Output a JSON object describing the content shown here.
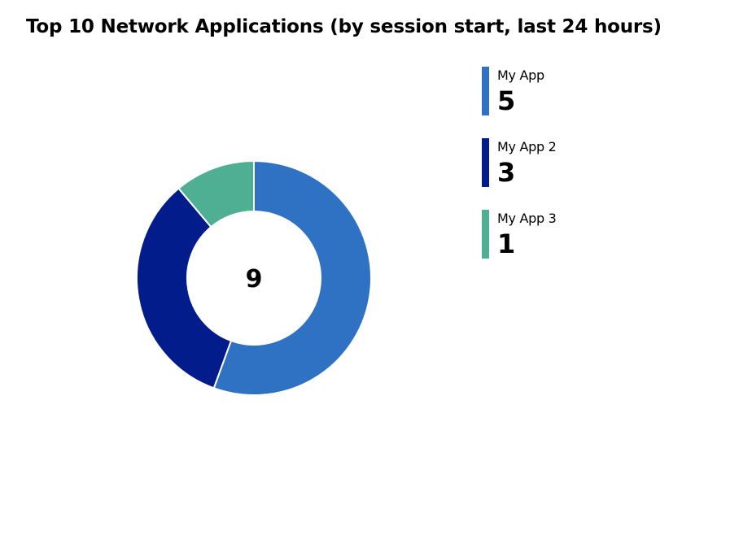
{
  "chart_data": {
    "type": "pie",
    "style": "donut",
    "title": "Top 10 Network Applications (by session start, last 24 hours)",
    "total": "9",
    "categories": [
      "My App",
      "My App 2",
      "My App 3"
    ],
    "values": [
      5,
      3,
      1
    ],
    "colors": [
      "#2f72c4",
      "#031c8c",
      "#4faf93"
    ],
    "legend_position": "right",
    "legend": [
      {
        "label": "My App",
        "value": "5"
      },
      {
        "label": "My App 2",
        "value": "3"
      },
      {
        "label": "My App 3",
        "value": "1"
      }
    ]
  }
}
